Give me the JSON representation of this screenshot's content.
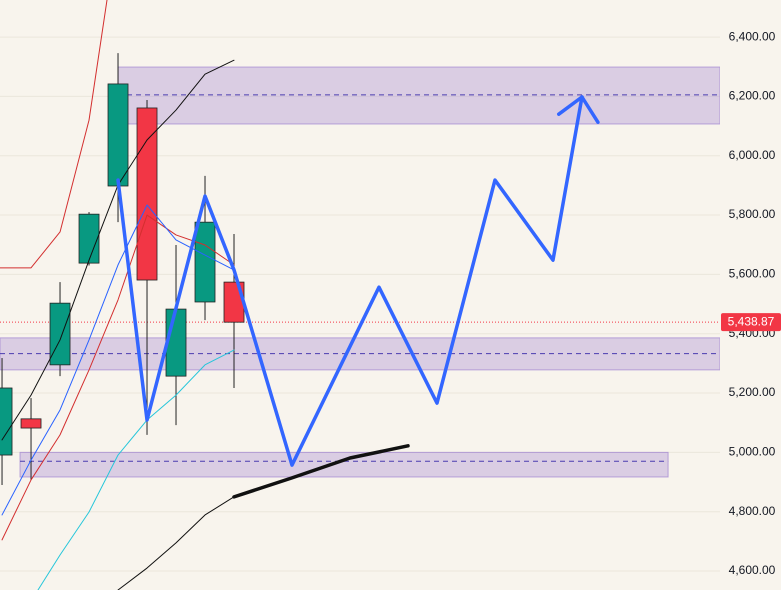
{
  "chart_data": {
    "type": "candlestick",
    "categories": [
      null,
      null,
      null,
      null,
      null,
      null,
      null,
      null,
      null
    ],
    "open": [
      4991,
      5113,
      5295,
      5638,
      5898,
      6161,
      5257,
      5507,
      5574
    ],
    "high": [
      5318,
      5183,
      5574,
      5810,
      6346,
      6188,
      5699,
      5932,
      5736
    ],
    "low": [
      4890,
      4907,
      5257,
      5630,
      5776,
      5059,
      5092,
      5446,
      5217
    ],
    "close": [
      5217,
      5082,
      5503,
      5803,
      6242,
      5581,
      5483,
      5776,
      5438.87
    ],
    "up_color": "#089981",
    "down_color": "#f23645",
    "xlim": [
      -0.07,
      24.76
    ],
    "ylim": [
      4536,
      6525
    ],
    "yticks": [
      {
        "value": 4600,
        "label": "4,600.00"
      },
      {
        "value": 4800,
        "label": "4,800.00"
      },
      {
        "value": 5000,
        "label": "5,000.00"
      },
      {
        "value": 5200,
        "label": "5,200.00"
      },
      {
        "value": 5400,
        "label": "5,400.00"
      },
      {
        "value": 5600,
        "label": "5,600.00"
      },
      {
        "value": 5800,
        "label": "5,800.00"
      },
      {
        "value": 6000,
        "label": "6,000.00"
      },
      {
        "value": 6200,
        "label": "6,200.00"
      },
      {
        "value": 6400,
        "label": "6,400.00"
      }
    ],
    "grid": true,
    "last_price": {
      "value": 5438.87,
      "label": "5,438.87",
      "color": "#f23645"
    },
    "lines": [
      {
        "color": "#d32f2f",
        "width": 1,
        "x": [
          -0.07,
          1,
          2,
          3,
          3.62
        ],
        "values": [
          5622,
          5622,
          5743,
          6120,
          6525
        ]
      },
      {
        "color": "#d32f2f",
        "width": 1,
        "x": [
          0,
          1,
          2,
          3,
          4,
          5,
          6,
          7,
          8
        ],
        "values": [
          4705,
          4907,
          5059,
          5278,
          5514,
          5800,
          5733,
          5699,
          5632
        ]
      },
      {
        "color": "#111111",
        "width": 1,
        "x": [
          0,
          1,
          2,
          3,
          4,
          5,
          6,
          7,
          8
        ],
        "values": [
          5042,
          5193,
          5379,
          5648,
          5901,
          6053,
          6154,
          6275,
          6322
        ]
      },
      {
        "color": "#2962ff",
        "width": 1,
        "x": [
          0,
          1,
          2,
          3,
          4,
          5,
          6,
          7,
          8
        ],
        "values": [
          4789,
          4974,
          5143,
          5379,
          5632,
          5834,
          5716,
          5665,
          5615
        ]
      },
      {
        "color": "#26c6da",
        "width": 1,
        "x": [
          1.24,
          2,
          3,
          4,
          5,
          6,
          7,
          8
        ],
        "values": [
          4536,
          4654,
          4799,
          4991,
          5109,
          5193,
          5295,
          5345
        ]
      },
      {
        "color": "#111111",
        "width": 1,
        "x": [
          4,
          5,
          6,
          7,
          8
        ],
        "values": [
          4536,
          4610,
          4695,
          4789,
          4850
        ]
      },
      {
        "color": "#3366ff",
        "width": 3.5,
        "x": [
          4,
          5,
          7,
          8,
          10,
          13,
          15,
          17,
          19,
          20
        ],
        "values": [
          5918,
          5109,
          5864,
          5615,
          4957,
          5557,
          5166,
          5918,
          5648,
          6198
        ]
      },
      {
        "color": "#3366ff",
        "width": 3.5,
        "x": [
          19.2,
          20,
          20.55
        ],
        "values": [
          6140,
          6198,
          6113
        ]
      },
      {
        "color": "#111111",
        "width": 3.5,
        "x": [
          8,
          10,
          12,
          14
        ],
        "values": [
          4850,
          4914,
          4981,
          5022
        ]
      }
    ],
    "zones": [
      {
        "x": [
          4,
          24.76
        ],
        "range": [
          6107,
          6299
        ],
        "level": 6205
      },
      {
        "x": [
          -0.07,
          24.76
        ],
        "range": [
          5278,
          5386
        ],
        "level": 5333
      },
      {
        "x": [
          0.62,
          22.97
        ],
        "range": [
          4917,
          5000
        ],
        "level": 4970
      }
    ],
    "zone_color": "#9575cd",
    "level_color": "#4a3cb0"
  }
}
